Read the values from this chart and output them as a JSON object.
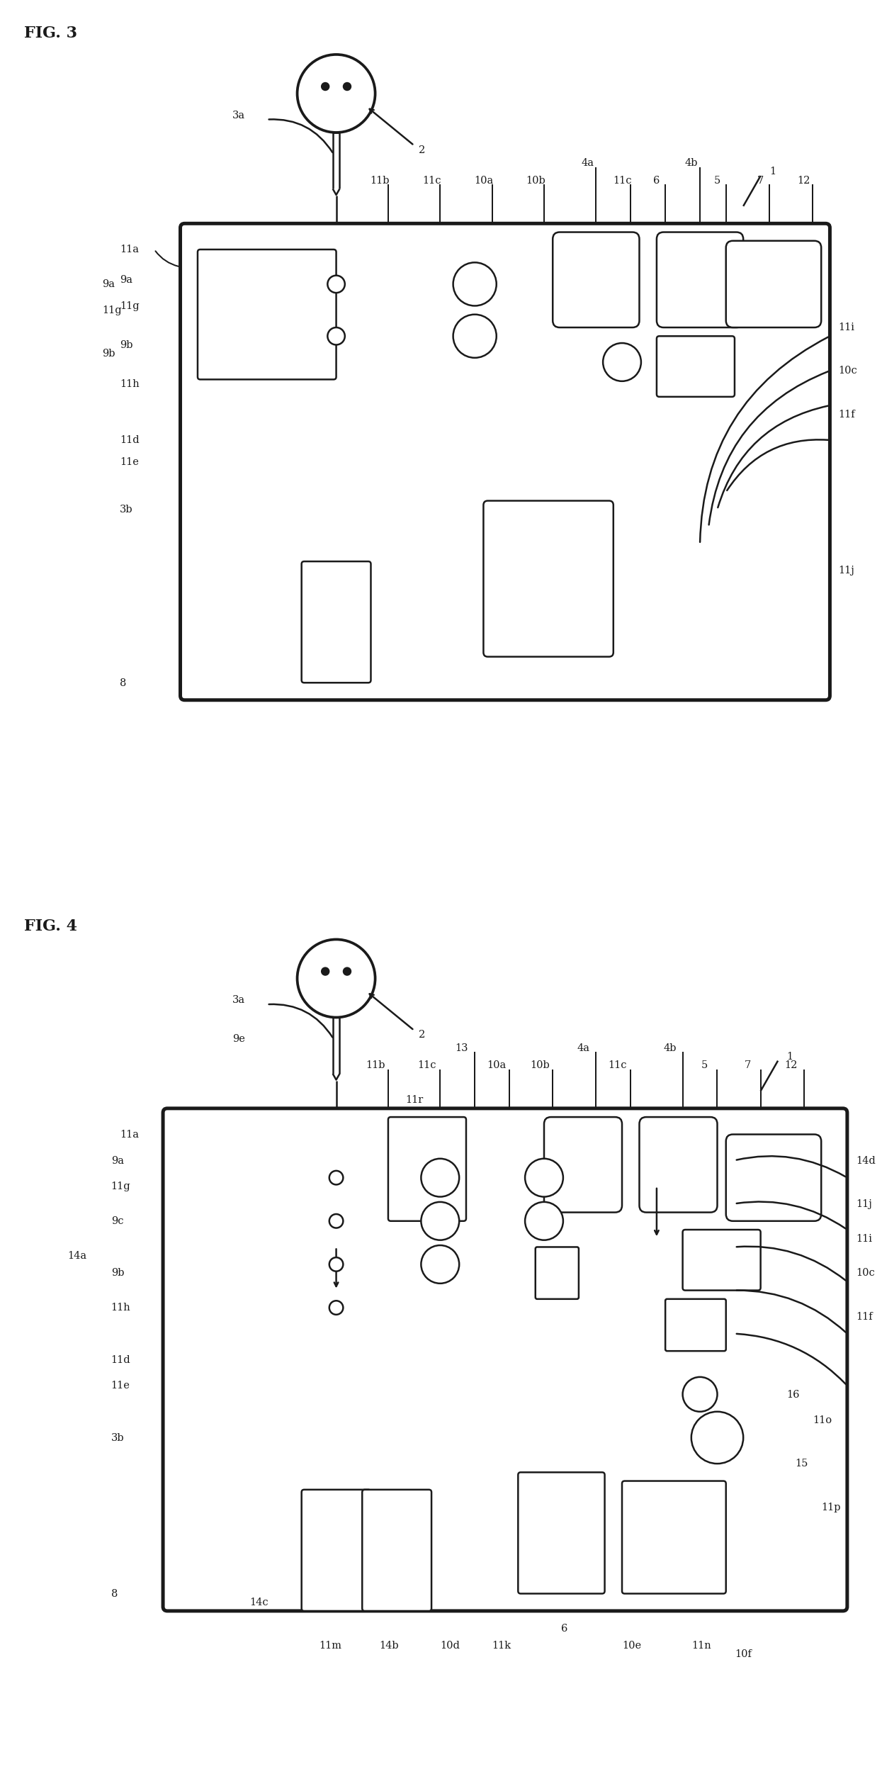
{
  "fig3_title": "FIG. 3",
  "fig4_title": "FIG. 4",
  "bg_color": "#ffffff",
  "line_color": "#1a1a1a",
  "line_width": 1.8,
  "label_fontsize": 10.5,
  "title_fontsize": 16
}
